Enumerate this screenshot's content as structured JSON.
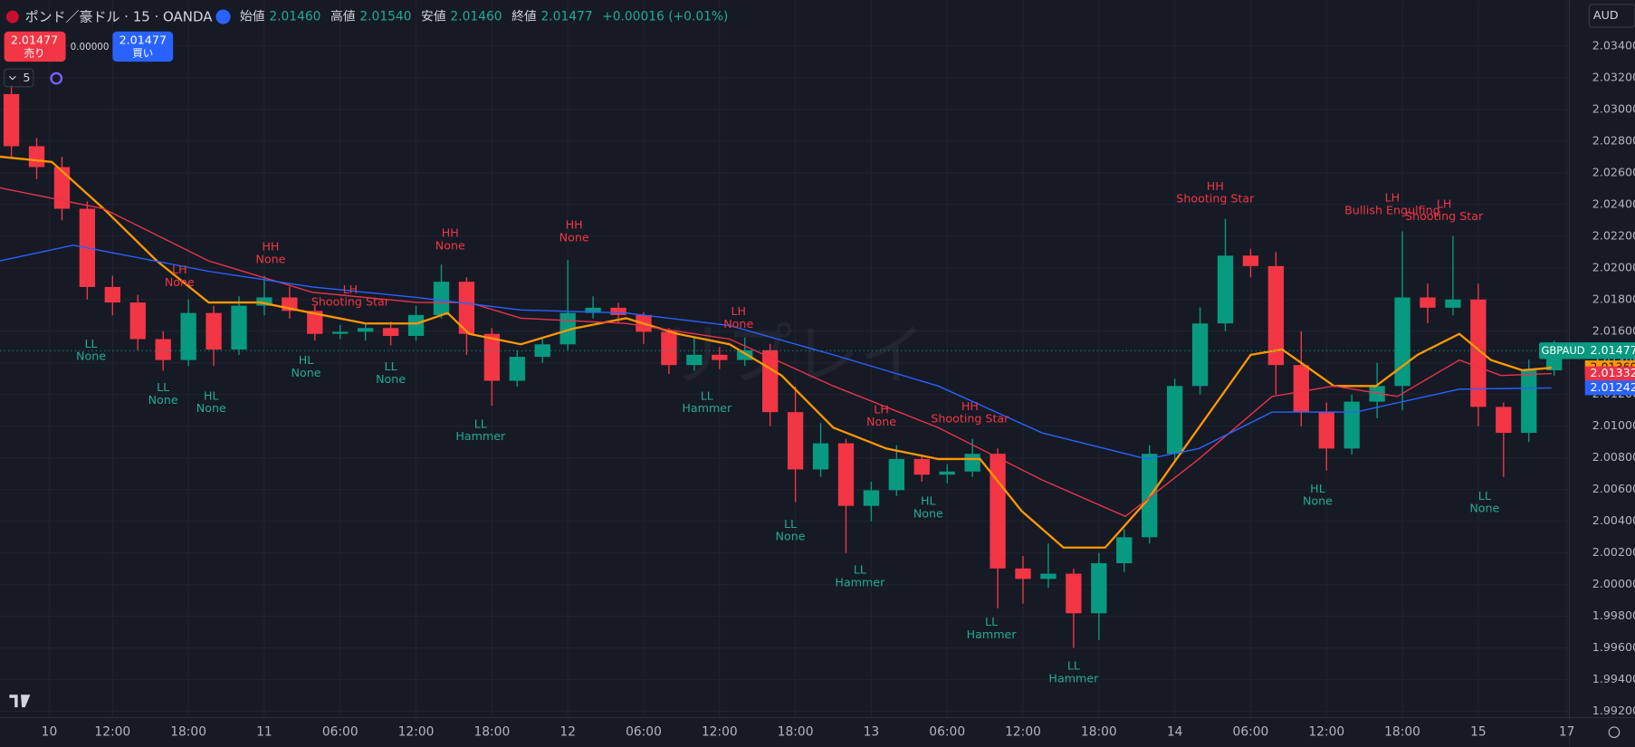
{
  "header": {
    "symbol": "ポンド／豪ドル · 15 · OANDA",
    "open_label": "始値",
    "open": "2.01460",
    "high_label": "高値",
    "high": "2.01540",
    "low_label": "安値",
    "low": "2.01460",
    "close_label": "終値",
    "close": "2.01477",
    "change": "+0.00016 (+0.01%)",
    "sell_price": "2.01477",
    "sell_label": "売り",
    "spread": "0.00000",
    "buy_price": "2.01477",
    "buy_label": "買い",
    "indicators": "5",
    "currency": "AUD",
    "watermark": "リプレイ"
  },
  "chart_data": {
    "type": "candlestick",
    "symbol": "GBPAUD",
    "up_color": "#089981",
    "down_color": "#f23645",
    "grid": true,
    "xlim": [
      3.1,
      127.2
    ],
    "ylim": [
      1.9916,
      2.0369
    ],
    "xticks": [
      {
        "value": 7,
        "label": "10"
      },
      {
        "value": 12,
        "label": "12:00"
      },
      {
        "value": 18,
        "label": "18:00"
      },
      {
        "value": 24,
        "label": "11"
      },
      {
        "value": 30,
        "label": "06:00"
      },
      {
        "value": 36,
        "label": "12:00"
      },
      {
        "value": 42,
        "label": "18:00"
      },
      {
        "value": 48,
        "label": "12"
      },
      {
        "value": 54,
        "label": "06:00"
      },
      {
        "value": 60,
        "label": "12:00"
      },
      {
        "value": 66,
        "label": "18:00"
      },
      {
        "value": 72,
        "label": "13"
      },
      {
        "value": 78,
        "label": "06:00"
      },
      {
        "value": 84,
        "label": "12:00"
      },
      {
        "value": 90,
        "label": "18:00"
      },
      {
        "value": 96,
        "label": "14"
      },
      {
        "value": 102,
        "label": "06:00"
      },
      {
        "value": 108,
        "label": "12:00"
      },
      {
        "value": 114,
        "label": "18:00"
      },
      {
        "value": 120,
        "label": "15"
      },
      {
        "value": 127,
        "label": "17"
      }
    ],
    "yticks": [
      {
        "value": 2.034,
        "label": "2.03400"
      },
      {
        "value": 2.032,
        "label": "2.03200"
      },
      {
        "value": 2.03,
        "label": "2.03000"
      },
      {
        "value": 2.028,
        "label": "2.02800"
      },
      {
        "value": 2.026,
        "label": "2.02600"
      },
      {
        "value": 2.024,
        "label": "2.02400"
      },
      {
        "value": 2.022,
        "label": "2.02200"
      },
      {
        "value": 2.02,
        "label": "2.02000"
      },
      {
        "value": 2.018,
        "label": "2.01800"
      },
      {
        "value": 2.016,
        "label": "2.01600"
      },
      {
        "value": 2.014,
        "label": "2.01400"
      },
      {
        "value": 2.012,
        "label": "2.01200"
      },
      {
        "value": 2.01,
        "label": "2.01000"
      },
      {
        "value": 2.008,
        "label": "2.00800"
      },
      {
        "value": 2.006,
        "label": "2.00600"
      },
      {
        "value": 2.004,
        "label": "2.00400"
      },
      {
        "value": 2.002,
        "label": "2.00200"
      },
      {
        "value": 2.0,
        "label": "2.00000"
      },
      {
        "value": 1.998,
        "label": "1.99800"
      },
      {
        "value": 1.996,
        "label": "1.99600"
      },
      {
        "value": 1.994,
        "label": "1.99400"
      },
      {
        "value": 1.992,
        "label": "1.99200"
      }
    ],
    "x": [
      4,
      6,
      8,
      10,
      12,
      14,
      16,
      18,
      20,
      22,
      24,
      26,
      28,
      30,
      32,
      34,
      36,
      38,
      40,
      42,
      44,
      46,
      48,
      50,
      52,
      54,
      56,
      58,
      60,
      62,
      64,
      66,
      68,
      70,
      72,
      74,
      76,
      78,
      80,
      82,
      84,
      86,
      88,
      90,
      92,
      94,
      96,
      98,
      100,
      102,
      104,
      106,
      108,
      110,
      112,
      114,
      116,
      118,
      120,
      122,
      124,
      126
    ],
    "open": [
      2.03097,
      2.02768,
      2.02636,
      2.02373,
      2.01879,
      2.01781,
      2.0155,
      2.01418,
      2.01715,
      2.01484,
      2.01761,
      2.01813,
      2.01728,
      2.01583,
      2.01596,
      2.0162,
      2.0157,
      2.01702,
      2.01912,
      2.01583,
      2.01287,
      2.01438,
      2.01517,
      2.01715,
      2.01748,
      2.01702,
      2.01596,
      2.01386,
      2.01451,
      2.01418,
      2.0148,
      2.01089,
      2.00727,
      2.00892,
      2.00497,
      2.00596,
      2.00793,
      2.00694,
      2.00714,
      2.00826,
      2.00102,
      2.00036,
      2.00069,
      1.99819,
      2.00135,
      2.00299,
      2.00826,
      2.01254,
      2.01649,
      2.02077,
      2.02011,
      2.01386,
      2.01089,
      2.00859,
      2.01155,
      2.01254,
      2.01813,
      2.01748,
      2.018,
      2.01122,
      2.00958,
      2.01353
    ],
    "high": [
      2.0315,
      2.0282,
      2.027,
      2.0242,
      2.0195,
      2.0183,
      2.016,
      2.018,
      2.0176,
      2.0182,
      2.0195,
      2.0188,
      2.0176,
      2.0164,
      2.0165,
      2.0166,
      2.0176,
      2.0202,
      2.0194,
      2.0162,
      2.0148,
      2.0156,
      2.0205,
      2.0182,
      2.0178,
      2.0172,
      2.0162,
      2.0156,
      2.015,
      2.0156,
      2.0152,
      2.0125,
      2.0102,
      2.0092,
      2.0065,
      2.0088,
      2.0082,
      2.0076,
      2.0092,
      2.0086,
      2.0018,
      2.0026,
      2.001,
      2.002,
      2.0035,
      2.0088,
      2.013,
      2.0175,
      2.0231,
      2.0212,
      2.021,
      2.016,
      2.0115,
      2.012,
      2.014,
      2.0223,
      2.019,
      2.022,
      2.019,
      2.0115,
      2.0142,
      2.0154
    ],
    "low": [
      2.027,
      2.0256,
      2.023,
      2.018,
      2.017,
      2.0148,
      2.0135,
      2.0138,
      2.0138,
      2.0145,
      2.017,
      2.0168,
      2.0154,
      2.0155,
      2.0154,
      2.0151,
      2.0154,
      2.0168,
      2.0145,
      2.0113,
      2.0125,
      2.014,
      2.0148,
      2.0168,
      2.0165,
      2.0152,
      2.0133,
      2.0135,
      2.0136,
      2.0138,
      2.01,
      2.0052,
      2.0068,
      2.002,
      2.004,
      2.0056,
      2.0065,
      2.0064,
      2.0068,
      1.9985,
      1.9988,
      1.9998,
      1.996,
      1.9965,
      2.0008,
      2.0026,
      2.0078,
      2.012,
      2.016,
      2.0194,
      2.012,
      2.01,
      2.0072,
      2.0082,
      2.0105,
      2.011,
      2.0165,
      2.017,
      2.01,
      2.0068,
      2.009,
      2.0132
    ],
    "close": [
      2.02768,
      2.02636,
      2.02373,
      2.01879,
      2.01781,
      2.0155,
      2.01418,
      2.01715,
      2.01484,
      2.01761,
      2.01813,
      2.01728,
      2.01583,
      2.01596,
      2.0162,
      2.0157,
      2.01702,
      2.01912,
      2.01583,
      2.01287,
      2.01438,
      2.01517,
      2.01715,
      2.01748,
      2.01702,
      2.01596,
      2.01386,
      2.01451,
      2.01418,
      2.0148,
      2.01089,
      2.00727,
      2.00892,
      2.00497,
      2.00596,
      2.00793,
      2.00694,
      2.00714,
      2.00826,
      2.00102,
      2.00036,
      2.00069,
      1.99819,
      2.00135,
      2.00299,
      2.00826,
      2.01254,
      2.01649,
      2.02077,
      2.02011,
      2.01386,
      2.01089,
      2.00859,
      2.01155,
      2.01254,
      2.01813,
      2.01748,
      2.018,
      2.01122,
      2.00958,
      2.01353,
      2.01477
    ],
    "overlays": [
      {
        "color": "#ff9800",
        "x": [
          3.1,
          7.2,
          11.3,
          15.5,
          19.6,
          23.7,
          27.8,
          32.0,
          36.1,
          38.5,
          40.2,
          44.3,
          48.4,
          52.6,
          56.7,
          60.8,
          64.9,
          69.0,
          73.2,
          77.3,
          80.6,
          83.9,
          87.2,
          90.5,
          93.8,
          97.9,
          102.0,
          104.5,
          108.6,
          111.9,
          115.2,
          118.5,
          121.0,
          123.5,
          125.8
        ],
        "values": [
          2.02702,
          2.02669,
          2.02373,
          2.02044,
          2.01781,
          2.01781,
          2.01715,
          2.01649,
          2.01649,
          2.01715,
          2.01583,
          2.01517,
          2.01616,
          2.01682,
          2.01583,
          2.01517,
          2.0132,
          2.00991,
          2.00859,
          2.00793,
          2.00793,
          2.00464,
          2.00234,
          2.00234,
          2.0053,
          2.00991,
          2.01451,
          2.01484,
          2.01254,
          2.01254,
          2.01451,
          2.01583,
          2.01418,
          2.01353,
          2.01369
        ]
      },
      {
        "color": "#e8334a",
        "x": [
          3.1,
          11.3,
          19.6,
          27.8,
          36.1,
          40.2,
          44.3,
          52.6,
          60.8,
          69.0,
          77.3,
          85.5,
          92.1,
          97.9,
          103.7,
          108.6,
          113.6,
          118.5,
          121.8,
          125.8
        ],
        "values": [
          2.02505,
          2.02373,
          2.02044,
          2.01846,
          2.01781,
          2.01781,
          2.01682,
          2.01649,
          2.0155,
          2.01254,
          2.00991,
          2.00661,
          2.00431,
          2.00793,
          2.01188,
          2.01254,
          2.01188,
          2.01418,
          2.0132,
          2.01332
        ]
      },
      {
        "color": "#2962ff",
        "x": [
          3.1,
          8.9,
          19.6,
          27.8,
          36.1,
          44.3,
          52.6,
          60.8,
          69.0,
          77.3,
          85.5,
          93.8,
          97.9,
          103.7,
          110.3,
          118.5,
          125.8
        ],
        "values": [
          2.02044,
          2.02143,
          2.01978,
          2.01879,
          2.01813,
          2.01734,
          2.01715,
          2.01636,
          2.01451,
          2.01254,
          2.00958,
          2.00793,
          2.00859,
          2.01089,
          2.01089,
          2.01234,
          2.01242
        ]
      }
    ],
    "annotations": [
      {
        "x": 10.3,
        "price": 2.01609,
        "text": "LL",
        "pattern": "None",
        "color": "#22ab94",
        "side": "below"
      },
      {
        "x": 16.0,
        "price": 2.01333,
        "text": "LL",
        "pattern": "None",
        "color": "#22ab94",
        "side": "below"
      },
      {
        "x": 17.3,
        "price": 2.01774,
        "text": "LH",
        "pattern": "None",
        "color": "#f23645",
        "side": "above"
      },
      {
        "x": 19.8,
        "price": 2.0128,
        "text": "HL",
        "pattern": "None",
        "color": "#22ab94",
        "side": "below"
      },
      {
        "x": 24.5,
        "price": 2.01919,
        "text": "HH",
        "pattern": "None",
        "color": "#f23645",
        "side": "above"
      },
      {
        "x": 27.3,
        "price": 2.01504,
        "text": "HL",
        "pattern": "None",
        "color": "#22ab94",
        "side": "below"
      },
      {
        "x": 30.8,
        "price": 2.01649,
        "text": "LH",
        "pattern": "Shooting Star",
        "color": "#f23645",
        "side": "above"
      },
      {
        "x": 34.0,
        "price": 2.01465,
        "text": "LL",
        "pattern": "None",
        "color": "#22ab94",
        "side": "below"
      },
      {
        "x": 38.7,
        "price": 2.02004,
        "text": "HH",
        "pattern": "None",
        "color": "#f23645",
        "side": "above"
      },
      {
        "x": 41.1,
        "price": 2.01103,
        "text": "LL",
        "pattern": "Hammer",
        "color": "#22ab94",
        "side": "below"
      },
      {
        "x": 48.5,
        "price": 2.02057,
        "text": "HH",
        "pattern": "None",
        "color": "#f23645",
        "side": "above"
      },
      {
        "x": 59.0,
        "price": 2.0128,
        "text": "LL",
        "pattern": "Hammer",
        "color": "#22ab94",
        "side": "below"
      },
      {
        "x": 61.5,
        "price": 2.01511,
        "text": "LH",
        "pattern": "None",
        "color": "#f23645",
        "side": "above"
      },
      {
        "x": 65.6,
        "price": 2.00471,
        "text": "LL",
        "pattern": "None",
        "color": "#22ab94",
        "side": "below"
      },
      {
        "x": 71.1,
        "price": 2.00181,
        "text": "LL",
        "pattern": "Hammer",
        "color": "#22ab94",
        "side": "below"
      },
      {
        "x": 72.8,
        "price": 2.00892,
        "text": "LH",
        "pattern": "None",
        "color": "#f23645",
        "side": "above"
      },
      {
        "x": 76.5,
        "price": 2.00615,
        "text": "HL",
        "pattern": "None",
        "color": "#22ab94",
        "side": "below"
      },
      {
        "x": 79.8,
        "price": 2.00912,
        "text": "HH",
        "pattern": "Shooting Star",
        "color": "#f23645",
        "side": "above"
      },
      {
        "x": 81.5,
        "price": 1.99852,
        "text": "LL",
        "pattern": "Hammer",
        "color": "#22ab94",
        "side": "below"
      },
      {
        "x": 88.0,
        "price": 1.99575,
        "text": "LL",
        "pattern": "Hammer",
        "color": "#22ab94",
        "side": "below"
      },
      {
        "x": 99.2,
        "price": 2.02301,
        "text": "HH",
        "pattern": "Shooting Star",
        "color": "#f23645",
        "side": "above"
      },
      {
        "x": 107.3,
        "price": 2.00694,
        "text": "HL",
        "pattern": "None",
        "color": "#22ab94",
        "side": "below"
      },
      {
        "x": 113.2,
        "price": 2.02228,
        "text": "LH",
        "pattern": "Bullish Engulfing",
        "color": "#f23645",
        "side": "above"
      },
      {
        "x": 117.3,
        "price": 2.02189,
        "text": "LH",
        "pattern": "Shooting Star",
        "color": "#f23645",
        "side": "above"
      },
      {
        "x": 120.5,
        "price": 2.00648,
        "text": "LL",
        "pattern": "None",
        "color": "#22ab94",
        "side": "below"
      }
    ]
  }
}
